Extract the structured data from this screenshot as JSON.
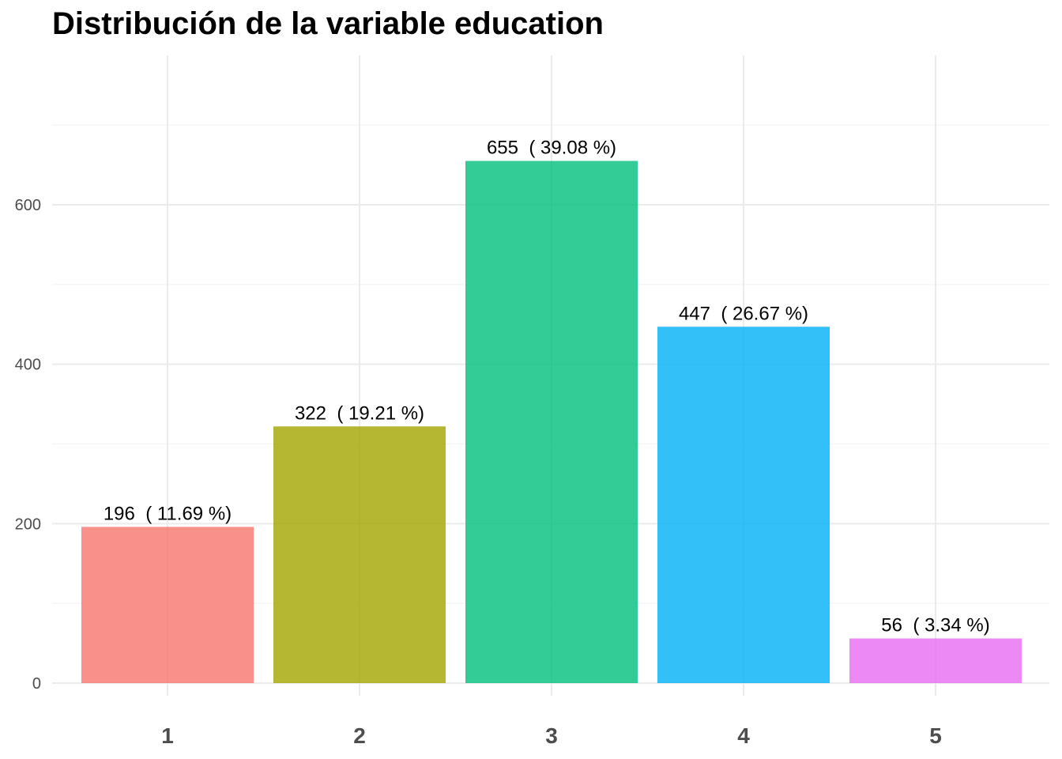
{
  "chart_data": {
    "type": "bar",
    "title": "Distribución de la variable education",
    "xlabel": "",
    "ylabel": "",
    "categories": [
      "1",
      "2",
      "3",
      "4",
      "5"
    ],
    "values": [
      196,
      322,
      655,
      447,
      56
    ],
    "data_labels": [
      "196  ( 11.69 %)",
      "322  ( 19.21 %)",
      "655  ( 39.08 %)",
      "447  ( 26.67 %)",
      "56  ( 3.34 %)"
    ],
    "colors": [
      "#F8766D",
      "#A3A500",
      "#00BF7D",
      "#00B0F6",
      "#E76BF3"
    ],
    "ylim": [
      0,
      700
    ],
    "yticks": [
      0,
      200,
      400,
      600
    ],
    "grid": true,
    "legend": "none"
  }
}
